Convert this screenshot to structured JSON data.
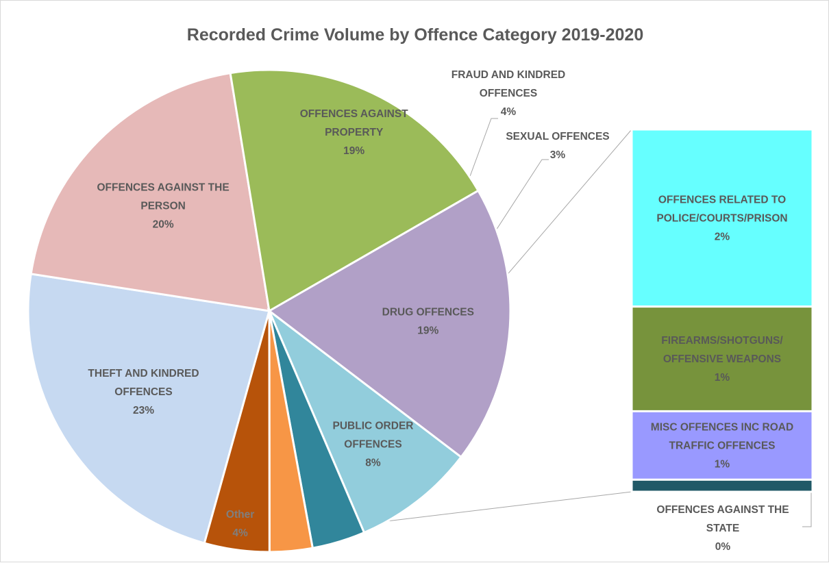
{
  "chart_data": {
    "type": "bar-of-pie",
    "title": "Recorded Crime Volume by Offence Category 2019-2020",
    "pie_slices": [
      {
        "label": [
          "THEFT AND KINDRED",
          "OFFENCES"
        ],
        "percent_label": "23%",
        "value": 23.4,
        "color": "#c6d9f1",
        "label_color": "#595959"
      },
      {
        "label": [
          "OFFENCES AGAINST THE",
          "PERSON"
        ],
        "percent_label": "20%",
        "value": 20.2,
        "color": "#e6b9b8",
        "label_color": "#595959"
      },
      {
        "label": [
          "OFFENCES AGAINST",
          "PROPERTY"
        ],
        "percent_label": "19%",
        "value": 19.5,
        "color": "#9bbb59",
        "label_color": "#595959"
      },
      {
        "label": [
          "DRUG OFFENCES"
        ],
        "percent_label": "19%",
        "value": 18.9,
        "color": "#b1a0c7",
        "label_color": "#595959"
      },
      {
        "label": [
          "PUBLIC ORDER",
          "OFFENCES"
        ],
        "percent_label": "8%",
        "value": 8.3,
        "color": "#92cddc",
        "label_color": "#595959"
      },
      {
        "label": [
          "FRAUD AND KINDRED",
          "OFFENCES"
        ],
        "percent_label": "4%",
        "value": 3.6,
        "color": "#31869b",
        "label_color": "#595959"
      },
      {
        "label": [
          "SEXUAL OFFENCES"
        ],
        "percent_label": "3%",
        "value": 2.9,
        "color": "#f79646",
        "label_color": "#595959"
      },
      {
        "label": [
          "Other"
        ],
        "percent_label": "4%",
        "value": 4.4,
        "color": "#b7530a",
        "label_color": "#7f7f7f"
      }
    ],
    "other_breakdown": [
      {
        "label": [
          "OFFENCES RELATED TO",
          "POLICE/COURTS/PRISON"
        ],
        "percent_label": "2%",
        "value": 2.2,
        "color": "#66ffff",
        "label_color": "#595959"
      },
      {
        "label": [
          "FIREARMS/SHOTGUNS/",
          "OFFENSIVE WEAPONS"
        ],
        "percent_label": "1%",
        "value": 1.3,
        "color": "#77933c",
        "label_color": "#595959"
      },
      {
        "label": [
          "MISC OFFENCES INC ROAD",
          "TRAFFIC OFFENCES"
        ],
        "percent_label": "1%",
        "value": 0.85,
        "color": "#9999ff",
        "label_color": "#595959"
      },
      {
        "label": [
          "OFFENCES AGAINST THE",
          "STATE"
        ],
        "percent_label": "0%",
        "value": 0.15,
        "color": "#215967",
        "label_color": "#595959"
      }
    ]
  }
}
